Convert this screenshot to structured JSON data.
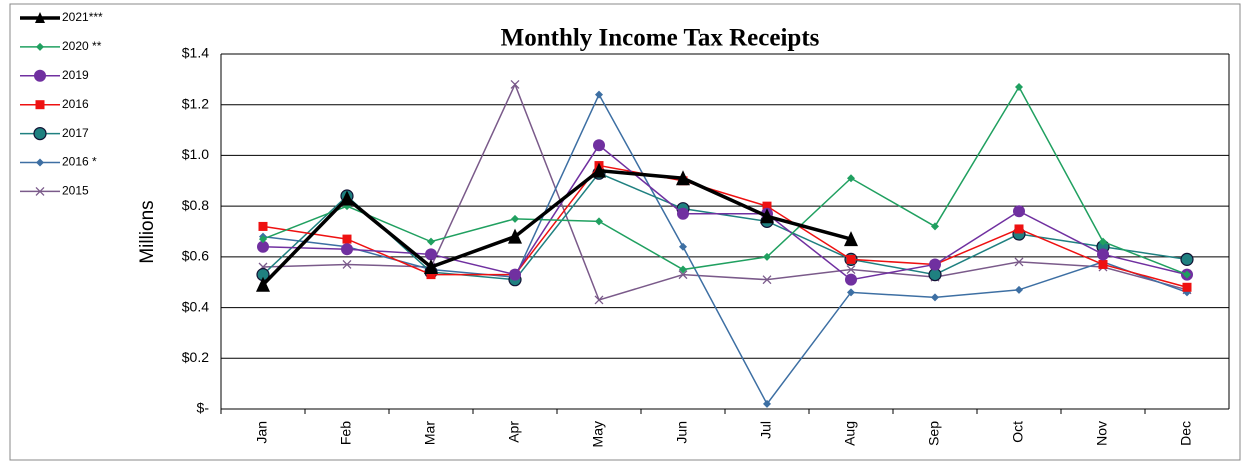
{
  "chart_data": {
    "type": "line",
    "title": "Monthly Income Tax Receipts",
    "y_label": "Millions",
    "categories": [
      "Jan",
      "Feb",
      "Mar",
      "Apr",
      "May",
      "Jun",
      "Jul",
      "Aug",
      "Sep",
      "Oct",
      "Nov",
      "Dec"
    ],
    "ylim": [
      0,
      1.4
    ],
    "yticks": [
      {
        "value": 0,
        "label": "$-"
      },
      {
        "value": 0.2,
        "label": "$0.2"
      },
      {
        "value": 0.4,
        "label": "$0.4"
      },
      {
        "value": 0.6,
        "label": "$0.6"
      },
      {
        "value": 0.8,
        "label": "$0.8"
      },
      {
        "value": 1.0,
        "label": "$1.0"
      },
      {
        "value": 1.2,
        "label": "$1.2"
      },
      {
        "value": 1.4,
        "label": "$1.4"
      }
    ],
    "grid": true,
    "legend": "left",
    "series": [
      {
        "name": "2021***",
        "color": "#000000",
        "marker": "triangle",
        "values": [
          0.49,
          0.83,
          0.56,
          0.68,
          0.94,
          0.91,
          0.76,
          0.67,
          null,
          null,
          null,
          null
        ]
      },
      {
        "name": "2020 **",
        "color": "#20a060",
        "marker": "diamond",
        "values": [
          0.67,
          0.8,
          0.66,
          0.75,
          0.74,
          0.55,
          0.6,
          0.91,
          0.72,
          1.27,
          0.66,
          0.53
        ]
      },
      {
        "name": "2019",
        "color": "#7030a0",
        "marker": "circle",
        "values": [
          0.64,
          0.63,
          0.61,
          0.53,
          1.04,
          0.77,
          0.77,
          0.51,
          0.57,
          0.78,
          0.61,
          0.53
        ]
      },
      {
        "name": "2016",
        "color": "#ee1111",
        "marker": "square",
        "values": [
          0.72,
          0.67,
          0.53,
          0.53,
          0.96,
          0.9,
          0.8,
          0.59,
          0.57,
          0.71,
          0.57,
          0.48
        ]
      },
      {
        "name": "2017",
        "color": "#1f8080",
        "marker": "circle-edge",
        "values": [
          0.53,
          0.84,
          0.54,
          0.51,
          0.93,
          0.79,
          0.74,
          0.59,
          0.53,
          0.69,
          0.64,
          0.59
        ]
      },
      {
        "name": "2016 *",
        "color": "#3d6fa3",
        "marker": "diamond",
        "values": [
          0.68,
          0.64,
          0.55,
          0.52,
          1.24,
          0.64,
          0.02,
          0.46,
          0.44,
          0.47,
          0.58,
          0.46
        ]
      },
      {
        "name": "2015",
        "color": "#7a5a8a",
        "marker": "x",
        "values": [
          0.56,
          0.57,
          0.56,
          1.28,
          0.43,
          0.53,
          0.51,
          0.55,
          0.52,
          0.58,
          0.56,
          0.47
        ]
      }
    ]
  }
}
